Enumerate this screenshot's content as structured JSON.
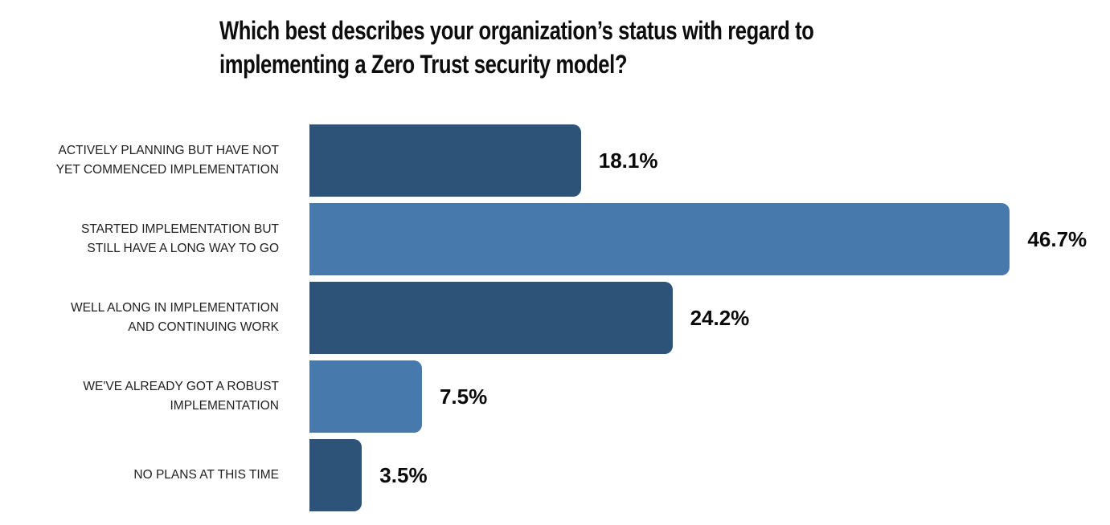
{
  "title": {
    "line1": "Which best describes your organization’s status with regard to",
    "line2": "implementing a Zero Trust security model?"
  },
  "chart_data": {
    "type": "bar",
    "orientation": "horizontal",
    "title": "Which best describes your organization’s status with regard to implementing a Zero Trust security model?",
    "categories": [
      "ACTIVELY PLANNING BUT HAVE NOT\nYET COMMENCED IMPLEMENTATION",
      "STARTED IMPLEMENTATION BUT\nSTILL HAVE A LONG WAY TO GO",
      "WELL ALONG IN IMPLEMENTATION\nAND CONTINUING WORK",
      "WE'VE ALREADY GOT A ROBUST\nIMPLEMENTATION",
      "NO PLANS AT THIS TIME"
    ],
    "values": [
      18.1,
      46.7,
      24.2,
      7.5,
      3.5
    ],
    "value_labels": [
      "18.1%",
      "46.7%",
      "24.2%",
      "7.5%",
      "3.5%"
    ],
    "xlabel": "",
    "ylabel": "",
    "xlim": [
      0,
      50
    ],
    "grid": false,
    "legend": false,
    "bar_colors": [
      "#2d5478",
      "#4779ac",
      "#2d5478",
      "#4779ac",
      "#2d5478"
    ],
    "colors": {
      "dark_blue": "#2d5478",
      "light_blue": "#4779ac",
      "label_text": "#212121",
      "value_text": "#0a0a0a",
      "title_text": "#0d0d0d",
      "background": "#ffffff"
    }
  }
}
